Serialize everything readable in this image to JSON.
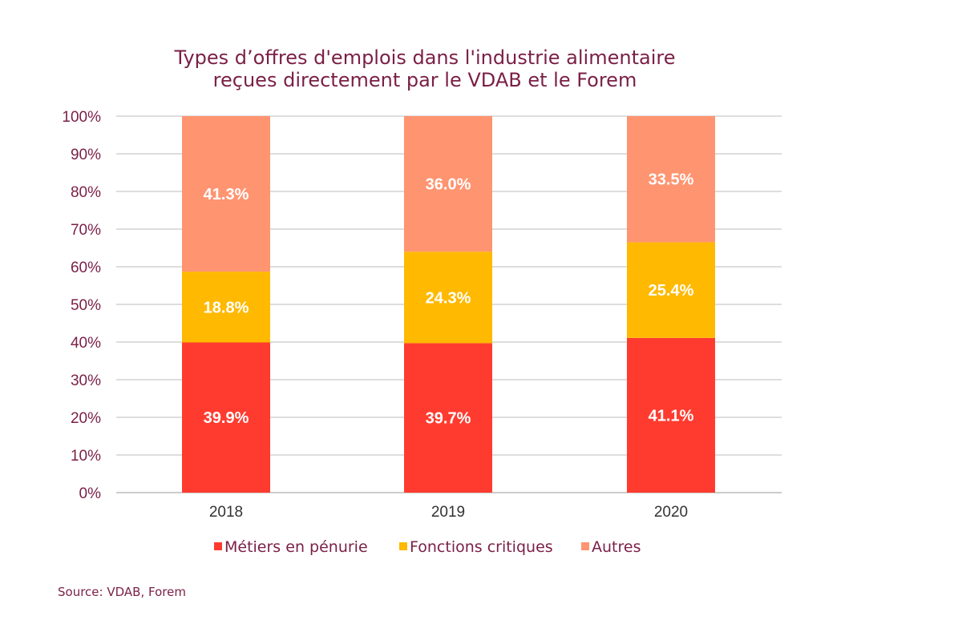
{
  "chart_data": {
    "type": "bar",
    "stacked": true,
    "title_lines": [
      "Types d’offres d'emplois dans l'industrie alimentaire",
      "reçues directement par le VDAB et le Forem"
    ],
    "categories": [
      "2018",
      "2019",
      "2020"
    ],
    "series": [
      {
        "name": "Métiers en pénurie",
        "color": "#ff3b2f",
        "values": [
          39.9,
          39.7,
          41.1
        ],
        "labels": [
          "39.9%",
          "39.7%",
          "41.1%"
        ]
      },
      {
        "name": "Fonctions critiques",
        "color": "#ffb900",
        "values": [
          18.8,
          24.3,
          25.4
        ],
        "labels": [
          "18.8%",
          "24.3%",
          "25.4%"
        ]
      },
      {
        "name": "Autres",
        "color": "#ff9470",
        "values": [
          41.3,
          36.0,
          33.5
        ],
        "labels": [
          "41.3%",
          "36.0%",
          "33.5%"
        ]
      }
    ],
    "yticks": [
      "0%",
      "10%",
      "20%",
      "30%",
      "40%",
      "50%",
      "60%",
      "70%",
      "80%",
      "90%",
      "100%"
    ],
    "ylim": [
      0,
      100
    ],
    "grid": true,
    "legend": "bottom",
    "xlabel": "",
    "ylabel": ""
  },
  "source": "Source: VDAB, Forem"
}
